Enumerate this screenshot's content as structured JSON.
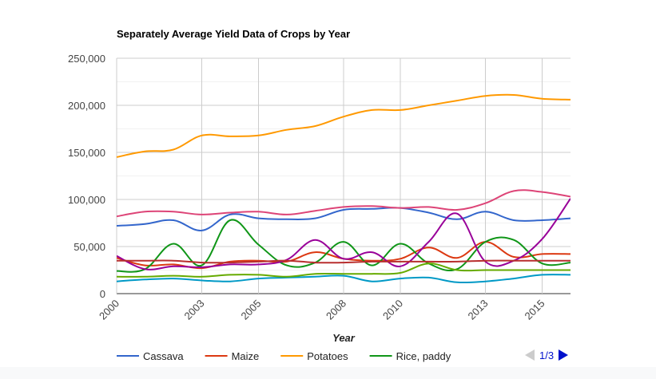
{
  "chart_data": {
    "type": "line",
    "title": "Separately Average Yield Data of Crops by Year",
    "xlabel": "Year",
    "ylabel": "",
    "x_range": [
      2000,
      2016
    ],
    "ylim": [
      0,
      250000
    ],
    "y_ticks": [
      0,
      50000,
      100000,
      150000,
      200000,
      250000
    ],
    "y_tick_labels": [
      "0",
      "50,000",
      "100,000",
      "150,000",
      "200,000",
      "250,000"
    ],
    "x_ticks": [
      2000,
      2003,
      2005,
      2008,
      2010,
      2013,
      2015
    ],
    "x_tick_labels": [
      "2000",
      "2003",
      "2005",
      "2008",
      "2010",
      "2013",
      "2015"
    ],
    "grid": true,
    "legend_position": "bottom",
    "legend_pager": "1/3",
    "series": [
      {
        "name": "Cassava",
        "color": "#3366cc",
        "in_legend": true,
        "x": [
          2000,
          2001,
          2002,
          2003,
          2004,
          2005,
          2006,
          2007,
          2008,
          2009,
          2010,
          2011,
          2012,
          2013,
          2014,
          2015,
          2016
        ],
        "values": [
          72000,
          74000,
          78000,
          67000,
          84000,
          80000,
          79000,
          80000,
          89000,
          90000,
          91000,
          86000,
          79000,
          87000,
          78000,
          78000,
          80000
        ]
      },
      {
        "name": "Maize",
        "color": "#dc3912",
        "in_legend": true,
        "x": [
          2000,
          2001,
          2002,
          2003,
          2004,
          2005,
          2006,
          2007,
          2008,
          2009,
          2010,
          2011,
          2012,
          2013,
          2014,
          2015,
          2016
        ],
        "values": [
          38000,
          30000,
          31000,
          27000,
          34000,
          35000,
          34000,
          44000,
          37000,
          35000,
          37000,
          49000,
          38000,
          55000,
          39000,
          42000,
          42000
        ]
      },
      {
        "name": "Potatoes",
        "color": "#ff9900",
        "in_legend": true,
        "x": [
          2000,
          2001,
          2002,
          2003,
          2004,
          2005,
          2006,
          2007,
          2008,
          2009,
          2010,
          2011,
          2012,
          2013,
          2014,
          2015,
          2016
        ],
        "values": [
          145000,
          151000,
          153000,
          168000,
          167000,
          168000,
          174000,
          178000,
          188000,
          195000,
          195000,
          200000,
          205000,
          210000,
          211000,
          207000,
          206000
        ]
      },
      {
        "name": "Rice, paddy",
        "color": "#109618",
        "in_legend": true,
        "x": [
          2000,
          2001,
          2002,
          2003,
          2004,
          2005,
          2006,
          2007,
          2008,
          2009,
          2010,
          2011,
          2012,
          2013,
          2014,
          2015,
          2016
        ],
        "values": [
          24000,
          26000,
          53000,
          30000,
          78000,
          52000,
          30000,
          33000,
          55000,
          30000,
          53000,
          32000,
          26000,
          55000,
          57000,
          32000,
          33000
        ]
      },
      {
        "name": "",
        "color": "#990099",
        "in_legend": false,
        "x": [
          2000,
          2001,
          2002,
          2003,
          2004,
          2005,
          2006,
          2007,
          2008,
          2009,
          2010,
          2011,
          2012,
          2013,
          2014,
          2015,
          2016
        ],
        "values": [
          40000,
          26000,
          29000,
          28000,
          31000,
          31000,
          36000,
          57000,
          37000,
          44000,
          29000,
          55000,
          85000,
          34000,
          35000,
          58000,
          101000
        ]
      },
      {
        "name": "",
        "color": "#dd4477",
        "in_legend": false,
        "x": [
          2000,
          2001,
          2002,
          2003,
          2004,
          2005,
          2006,
          2007,
          2008,
          2009,
          2010,
          2011,
          2012,
          2013,
          2014,
          2015,
          2016
        ],
        "values": [
          82000,
          87000,
          87000,
          84000,
          86000,
          87000,
          84000,
          88000,
          92000,
          93000,
          91000,
          92000,
          89000,
          96000,
          109000,
          108000,
          103000
        ]
      },
      {
        "name": "",
        "color": "#0099c6",
        "in_legend": false,
        "x": [
          2000,
          2001,
          2002,
          2003,
          2004,
          2005,
          2006,
          2007,
          2008,
          2009,
          2010,
          2011,
          2012,
          2013,
          2014,
          2015,
          2016
        ],
        "values": [
          13000,
          15000,
          16000,
          14000,
          13000,
          16000,
          17000,
          18000,
          19000,
          13000,
          16000,
          17000,
          12000,
          13000,
          16000,
          20000,
          20000
        ]
      },
      {
        "name": "",
        "color": "#66aa00",
        "in_legend": false,
        "x": [
          2000,
          2001,
          2002,
          2003,
          2004,
          2005,
          2006,
          2007,
          2008,
          2009,
          2010,
          2011,
          2012,
          2013,
          2014,
          2015,
          2016
        ],
        "values": [
          18000,
          18000,
          19000,
          18000,
          20000,
          20000,
          18000,
          21000,
          21000,
          21000,
          22000,
          32000,
          25000,
          25000,
          25000,
          25000,
          25000
        ]
      },
      {
        "name": "",
        "color": "#b82e2e",
        "in_legend": false,
        "x": [
          2000,
          2001,
          2002,
          2003,
          2004,
          2005,
          2006,
          2007,
          2008,
          2009,
          2010,
          2011,
          2012,
          2013,
          2014,
          2015,
          2016
        ],
        "values": [
          35000,
          35000,
          35000,
          33000,
          33000,
          34000,
          35000,
          33000,
          33000,
          34000,
          34000,
          34000,
          34000,
          35000,
          35000,
          35000,
          35000
        ]
      }
    ]
  }
}
